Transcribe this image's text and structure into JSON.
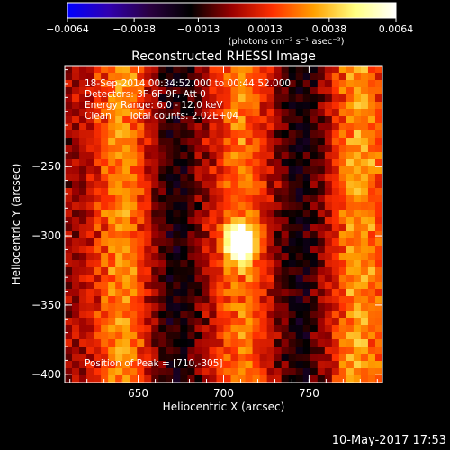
{
  "chart_data": {
    "type": "heatmap",
    "title": "Reconstructed RHESSI Image",
    "xlabel": "Heliocentric X (arcsec)",
    "ylabel": "Heliocentric Y (arcsec)",
    "xlim": [
      607,
      793
    ],
    "ylim": [
      -406,
      -177
    ],
    "x_ticks": [
      650,
      700,
      750
    ],
    "x_tick_labels": [
      "650",
      "700",
      "750"
    ],
    "y_ticks": [
      -250,
      -300,
      -350,
      -400
    ],
    "y_tick_labels": [
      "−250",
      "−300",
      "−350",
      "−400"
    ],
    "grid": false,
    "colorbar": {
      "orientation": "horizontal",
      "position": "top",
      "range": [
        -0.0064,
        0.0064
      ],
      "ticks": [
        -0.0064,
        -0.0038,
        -0.0013,
        0.0013,
        0.0038,
        0.0064
      ],
      "tick_labels": [
        "−0.0064",
        "−0.0038",
        "−0.0013",
        "0.0013",
        "0.0038",
        "0.0064"
      ],
      "unit_label": "(photons cm⁻² s⁻¹ asec⁻²)",
      "colors": [
        "#0000ff",
        "#3000b0",
        "#2a0040",
        "#000000",
        "#9a0000",
        "#ff3000",
        "#ffa000",
        "#ffff80",
        "#ffffff"
      ]
    },
    "annotations": [
      "18-Sep-2014 00:34:52.000 to 00:44:52.000",
      "Detectors: 3F 6F 9F, Att 0",
      "Energy Range: 6.0 - 12.0 keV",
      "Clean",
      "Total counts: 2.02E+04",
      "Position of Peak = [710,-305]"
    ],
    "peak": {
      "x": 710,
      "y": -305
    },
    "bands": [
      {
        "x_center": 640,
        "width": 26,
        "level": 0.45
      },
      {
        "x_center": 672,
        "width": 22,
        "level": -0.25
      },
      {
        "x_center": 710,
        "width": 26,
        "level": 0.4
      },
      {
        "x_center": 745,
        "width": 22,
        "level": -0.25
      },
      {
        "x_center": 780,
        "width": 26,
        "level": 0.5
      }
    ],
    "footer": "10-May-2017 17:53"
  }
}
